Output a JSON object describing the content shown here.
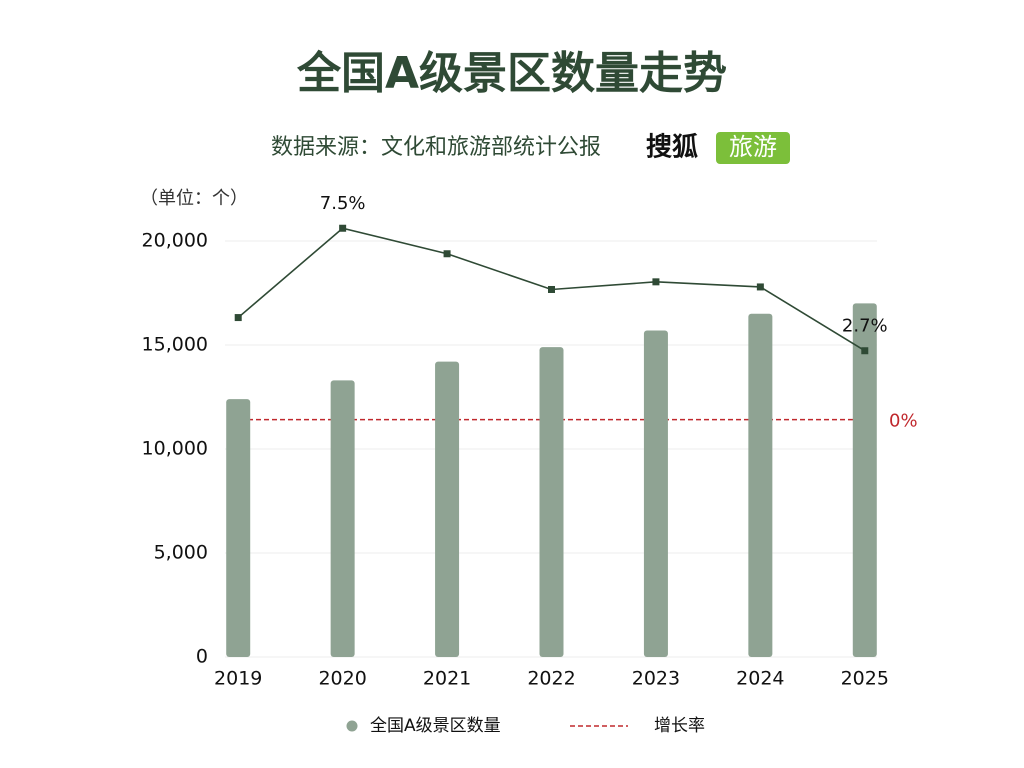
{
  "chart_data": {
    "type": "bar-line",
    "title": "全国A级景区数量走势",
    "subtitle": "数据来源：文化和旅游部统计公报",
    "brand": [
      "搜狐",
      "旅游"
    ],
    "unit_label": "（单位：个）",
    "categories": [
      "2019",
      "2020",
      "2021",
      "2022",
      "2023",
      "2024",
      "2025"
    ],
    "series": [
      {
        "name": "全国A级景区数量",
        "type": "bar",
        "color": "#8fa393",
        "values": [
          12400,
          13300,
          14200,
          14900,
          15700,
          16500,
          17000
        ]
      },
      {
        "name": "增长率",
        "type": "line",
        "axis": "y2",
        "color": "#2f4a35",
        "legend_color": "#c0282d",
        "values": [
          4.0,
          7.5,
          6.5,
          5.1,
          5.4,
          5.2,
          2.7
        ],
        "value_labels": [
          null,
          "7.5%",
          null,
          null,
          null,
          null,
          "2.7%"
        ]
      }
    ],
    "reference_line": {
      "value": 0,
      "label": "0%",
      "axis": "y2",
      "color": "#c0282d"
    },
    "ylim": [
      0,
      20000
    ],
    "yticks": [
      0,
      {
        "value": 5000,
        "label": "5,000"
      },
      {
        "value": 10000,
        "label": "10,000"
      },
      {
        "value": 15000,
        "label": "15,000"
      },
      {
        "value": 20000,
        "label": "20,000"
      }
    ],
    "y2lim": [
      -9.3,
      7
    ],
    "grid": true
  }
}
